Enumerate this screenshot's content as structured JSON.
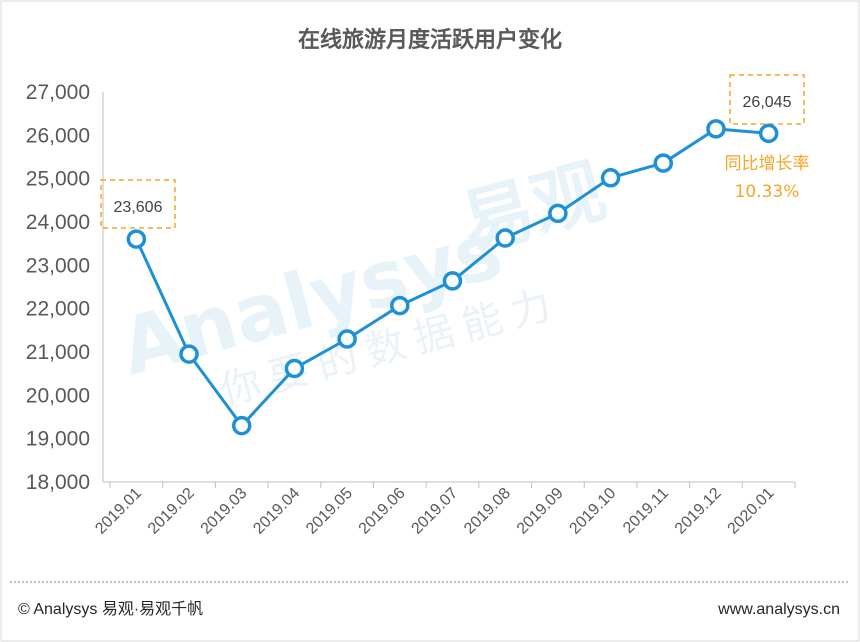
{
  "chart_data": {
    "type": "line",
    "title": "在线旅游月度活跃用户变化",
    "categories": [
      "2019.01",
      "2019.02",
      "2019.03",
      "2019.04",
      "2019.05",
      "2019.06",
      "2019.07",
      "2019.08",
      "2019.09",
      "2019.10",
      "2019.11",
      "2019.12",
      "2020.01"
    ],
    "values": [
      23606,
      20950,
      19300,
      20620,
      21300,
      22070,
      22640,
      23630,
      24200,
      25020,
      25360,
      26150,
      26045
    ],
    "ylim": [
      18000,
      27000
    ],
    "yticks": [
      18000,
      19000,
      20000,
      21000,
      22000,
      23000,
      24000,
      25000,
      26000,
      27000
    ],
    "ytick_labels": [
      "18,000",
      "19,000",
      "20,000",
      "21,000",
      "22,000",
      "23,000",
      "24,000",
      "25,000",
      "26,000",
      "27,000"
    ],
    "xlabel": "",
    "ylabel": "",
    "grid": false,
    "series_color": "#1e90d6",
    "annotations": [
      {
        "text": "23,606",
        "category": "2019.01"
      },
      {
        "text": "26,045",
        "category": "2020.01"
      }
    ],
    "yoy": {
      "label": "同比增长率",
      "value": "10.33%"
    }
  },
  "watermark": {
    "brand_latin": "Analysys",
    "brand_cn": "易观",
    "slogan": "你要的数据能力"
  },
  "footer": {
    "left": "© Analysys 易观·易观千帆",
    "right": "www.analysys.cn"
  },
  "colors": {
    "line": "#1e90d6",
    "accent": "#f5a623",
    "text": "#595959"
  }
}
